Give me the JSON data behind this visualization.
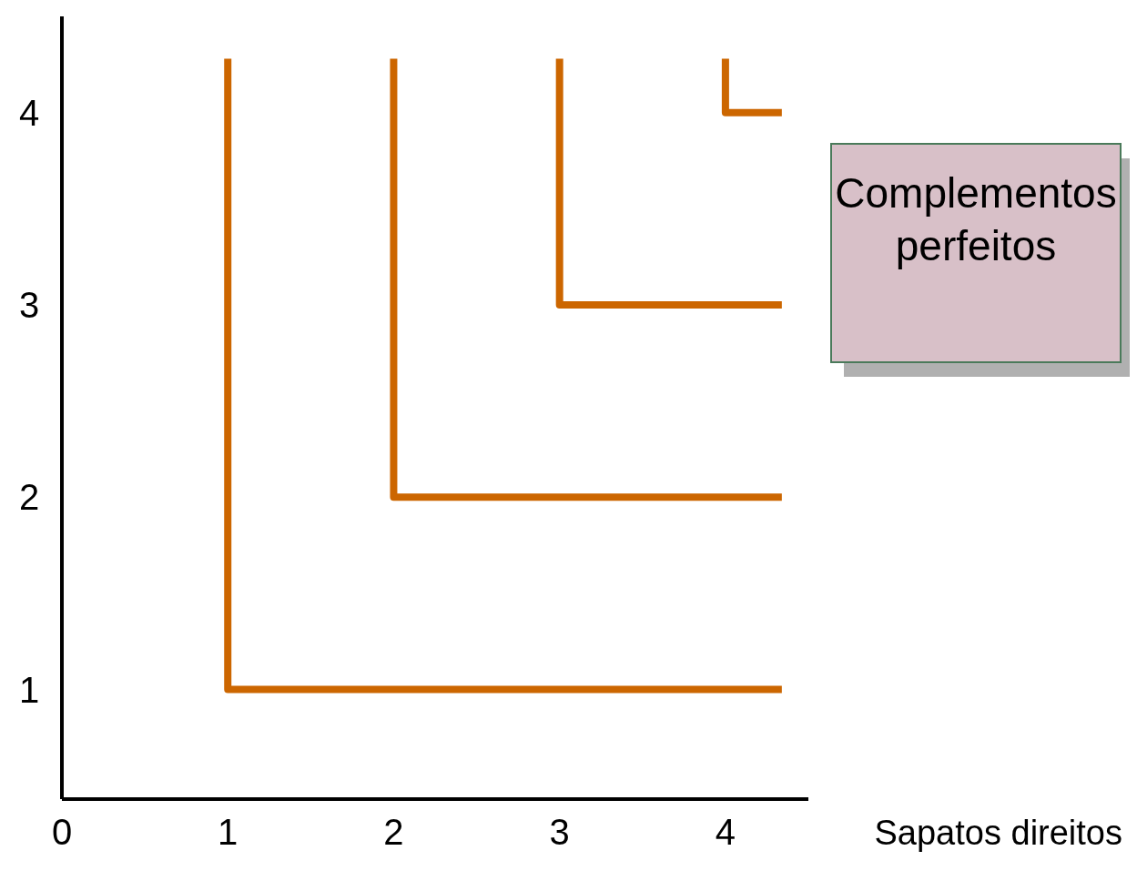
{
  "chart_data": {
    "type": "line",
    "xlabel": "Sapatos direitos",
    "xlim": [
      0,
      4.5
    ],
    "ylim": [
      0.43,
      4.5
    ],
    "xticks": [
      0,
      1,
      2,
      3,
      4
    ],
    "yticks": [
      1,
      2,
      3,
      4
    ],
    "series": [
      {
        "color": "#cc6600",
        "x": [
          1,
          1,
          4.34
        ],
        "values": [
          4.28,
          1,
          1
        ]
      },
      {
        "color": "#cc6600",
        "x": [
          2,
          2,
          4.34
        ],
        "values": [
          4.28,
          2,
          2
        ]
      },
      {
        "color": "#cc6600",
        "x": [
          3,
          3,
          4.34
        ],
        "values": [
          4.28,
          3,
          3
        ]
      },
      {
        "color": "#cc6600",
        "x": [
          4,
          4,
          4.34
        ],
        "values": [
          4.28,
          4,
          4
        ]
      }
    ],
    "annotations": [
      "Complementos perfeitos"
    ],
    "grid": false,
    "marker": "none",
    "line_style": "solid"
  }
}
